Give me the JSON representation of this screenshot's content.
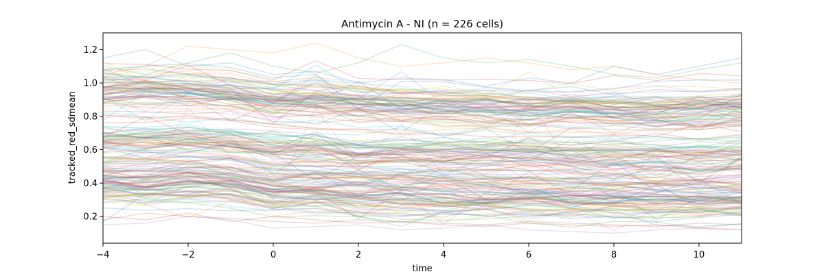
{
  "chart_data": {
    "type": "line",
    "title": "Antimycin A - NI (n = 226 cells)",
    "xlabel": "time",
    "ylabel": "tracked_red_sdmean",
    "xlim": [
      -4,
      11
    ],
    "ylim": [
      0.04,
      1.3
    ],
    "xticks": [
      -4,
      -2,
      0,
      2,
      4,
      6,
      8,
      10
    ],
    "xtick_labels": [
      "−4",
      "−2",
      "0",
      "2",
      "4",
      "6",
      "8",
      "10"
    ],
    "yticks": [
      0.2,
      0.4,
      0.6,
      0.8,
      1.0,
      1.2
    ],
    "ytick_labels": [
      "0.2",
      "0.4",
      "0.6",
      "0.8",
      "1.0",
      "1.2"
    ],
    "x": [
      -4,
      -3,
      -2,
      -1,
      0,
      1,
      2,
      3,
      4,
      5,
      6,
      7,
      8,
      9,
      10,
      11
    ],
    "series_count": 226,
    "line_alpha": 0.2,
    "grid": false,
    "legend": "none",
    "colors": [
      "#1f77b4",
      "#ff7f0e",
      "#2ca02c",
      "#d62728",
      "#9467bd",
      "#8c564b",
      "#e377c2",
      "#7f7f7f",
      "#bcbd22",
      "#17becf"
    ],
    "series": [
      {
        "values": [
          1.15,
          1.2,
          1.1,
          1.12,
          1.05,
          1.07,
          1.0,
          1.03,
          1.02,
          0.98,
          1.03,
          1.0,
          1.1,
          1.05,
          1.1,
          1.15
        ]
      },
      {
        "values": [
          1.05,
          1.1,
          1.22,
          1.2,
          1.18,
          1.24,
          1.15,
          1.1,
          1.12,
          1.15,
          1.12,
          1.08,
          1.1,
          1.05,
          1.02,
          1.0
        ]
      },
      {
        "values": [
          1.1,
          1.05,
          1.12,
          1.18,
          1.1,
          1.06,
          1.12,
          1.23,
          1.15,
          1.12,
          1.14,
          1.1,
          1.05,
          1.03,
          1.08,
          1.12
        ]
      },
      {
        "values": [
          0.2,
          0.18,
          0.22,
          0.17,
          0.2,
          0.18,
          0.16,
          0.17,
          0.15,
          0.14,
          0.16,
          0.15,
          0.14,
          0.15,
          0.13,
          0.12
        ]
      },
      {
        "values": [
          0.15,
          0.16,
          0.2,
          0.18,
          0.13,
          0.14,
          0.15,
          0.12,
          0.13,
          0.15,
          0.12,
          0.11,
          0.1,
          0.12,
          0.13,
          0.12
        ]
      },
      {
        "values": [
          0.18,
          0.22,
          0.2,
          0.19,
          0.17,
          0.16,
          0.18,
          0.17,
          0.16,
          0.15,
          0.17,
          0.16,
          0.15,
          0.14,
          0.16,
          0.15
        ]
      },
      {
        "values": [
          0.45,
          0.4,
          0.85,
          0.55,
          0.3,
          0.85,
          0.5,
          0.75,
          0.45,
          0.3,
          0.9,
          0.5,
          0.3,
          0.6,
          0.4,
          0.55
        ]
      },
      {
        "values": [
          0.95,
          1.0,
          0.9,
          0.92,
          0.8,
          0.75,
          0.85,
          0.7,
          0.88,
          0.8,
          0.75,
          0.82,
          0.7,
          0.78,
          0.72,
          0.8
        ]
      }
    ],
    "bands": [
      {
        "name": "upper",
        "mean": [
          0.95,
          0.96,
          0.95,
          0.93,
          0.9,
          0.9,
          0.88,
          0.87,
          0.86,
          0.86,
          0.85,
          0.85,
          0.84,
          0.84,
          0.84,
          0.85
        ],
        "spread": 0.12
      },
      {
        "name": "middle",
        "mean": [
          0.62,
          0.62,
          0.63,
          0.62,
          0.58,
          0.58,
          0.56,
          0.56,
          0.55,
          0.55,
          0.55,
          0.54,
          0.54,
          0.54,
          0.54,
          0.55
        ],
        "spread": 0.16
      },
      {
        "name": "lower",
        "mean": [
          0.38,
          0.38,
          0.39,
          0.38,
          0.33,
          0.33,
          0.32,
          0.32,
          0.31,
          0.31,
          0.31,
          0.3,
          0.3,
          0.3,
          0.3,
          0.3
        ],
        "spread": 0.1
      }
    ]
  }
}
